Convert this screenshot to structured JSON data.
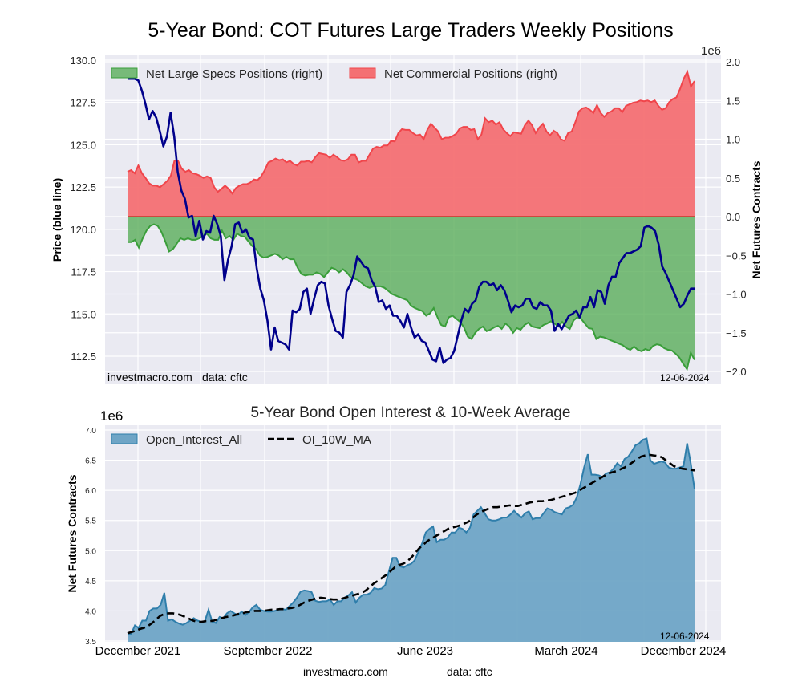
{
  "chart_data": [
    {
      "type": "area",
      "title": "5-Year Bond: COT Futures Large Traders Weekly Positions",
      "ylabel_left": "Price (blue line)",
      "ylabel_right": "Net Futures Contracts",
      "right_axis_multiplier": "1e6",
      "ylim_left": [
        110.9,
        130.3
      ],
      "ylim_right": [
        -2.07,
        2.07
      ],
      "left_ticks": [
        "130.0",
        "127.5",
        "125.0",
        "122.5",
        "120.0",
        "117.5",
        "115.0",
        "112.5"
      ],
      "right_ticks": [
        "2.0",
        "1.5",
        "1.0",
        "0.5",
        "0.0",
        "−0.5",
        "−1.0",
        "−1.5",
        "−2.0"
      ],
      "grid": true,
      "legend_placement": "top-left",
      "legend": [
        "Net Large Specs Positions (right)",
        "Net Commercial Positions (right)"
      ],
      "annotations": {
        "source": "investmacro.com",
        "data": "data: cftc",
        "date": "12-06-2024"
      },
      "x_range": [
        "2021-11",
        "2024-12-06"
      ],
      "series": [
        {
          "name": "Net Commercial Positions (right)",
          "color": "#f0454b",
          "unit": "1e6 contracts",
          "values": [
            0.58,
            0.6,
            0.56,
            0.66,
            0.56,
            0.5,
            0.43,
            0.4,
            0.4,
            0.38,
            0.42,
            0.46,
            0.53,
            0.72,
            0.72,
            0.62,
            0.58,
            0.6,
            0.56,
            0.55,
            0.53,
            0.5,
            0.52,
            0.5,
            0.38,
            0.32,
            0.36,
            0.4,
            0.36,
            0.3,
            0.37,
            0.4,
            0.42,
            0.42,
            0.44,
            0.48,
            0.47,
            0.52,
            0.6,
            0.7,
            0.72,
            0.75,
            0.73,
            0.74,
            0.7,
            0.72,
            0.68,
            0.66,
            0.71,
            0.71,
            0.72,
            0.7,
            0.77,
            0.82,
            0.81,
            0.8,
            0.76,
            0.8,
            0.77,
            0.73,
            0.72,
            0.74,
            0.8,
            0.8,
            0.7,
            0.72,
            0.72,
            0.8,
            0.88,
            0.9,
            0.89,
            0.92,
            0.92,
            0.98,
            0.97,
            1.08,
            1.13,
            1.12,
            1.12,
            1.08,
            1.05,
            1.06,
            1.0,
            1.12,
            1.2,
            1.15,
            1.1,
            1.0,
            1.02,
            1.02,
            1.04,
            1.07,
            1.14,
            1.16,
            1.16,
            1.12,
            1.13,
            1.0,
            1.06,
            1.27,
            1.22,
            1.24,
            1.19,
            1.22,
            1.13,
            1.08,
            1.04,
            1.09,
            1.08,
            1.07,
            1.18,
            1.24,
            1.18,
            1.08,
            1.15,
            1.2,
            1.1,
            1.05,
            1.11,
            1.08,
            1.0,
            0.98,
            1.08,
            1.1,
            1.22,
            1.36,
            1.4,
            1.41,
            1.38,
            1.34,
            1.44,
            1.34,
            1.29,
            1.34,
            1.36,
            1.4,
            1.4,
            1.35,
            1.43,
            1.45,
            1.47,
            1.48,
            1.5,
            1.49,
            1.5,
            1.48,
            1.5,
            1.43,
            1.38,
            1.4,
            1.48,
            1.52,
            1.54,
            1.65,
            1.78,
            1.87,
            1.68,
            1.75
          ]
        },
        {
          "name": "Net Large Specs Positions (right)",
          "color": "#3a9e3a",
          "unit": "1e6 contracts",
          "values": [
            -0.33,
            -0.33,
            -0.3,
            -0.4,
            -0.28,
            -0.18,
            -0.12,
            -0.1,
            -0.12,
            -0.2,
            -0.32,
            -0.45,
            -0.42,
            -0.35,
            -0.28,
            -0.3,
            -0.28,
            -0.3,
            -0.3,
            -0.28,
            -0.25,
            -0.22,
            -0.28,
            -0.3,
            -0.3,
            -0.18,
            -0.28,
            -0.25,
            -0.3,
            -0.22,
            -0.25,
            -0.26,
            -0.32,
            -0.38,
            -0.42,
            -0.5,
            -0.53,
            -0.52,
            -0.5,
            -0.48,
            -0.5,
            -0.55,
            -0.52,
            -0.55,
            -0.55,
            -0.66,
            -0.74,
            -0.76,
            -0.75,
            -0.75,
            -0.72,
            -0.74,
            -0.78,
            -0.72,
            -0.66,
            -0.68,
            -0.72,
            -0.68,
            -0.72,
            -0.78,
            -0.8,
            -0.82,
            -0.86,
            -0.9,
            -0.92,
            -0.9,
            -0.9,
            -0.9,
            -0.92,
            -0.96,
            -1.0,
            -1.02,
            -1.04,
            -1.06,
            -1.08,
            -1.15,
            -1.18,
            -1.2,
            -1.22,
            -1.28,
            -1.25,
            -1.18,
            -1.3,
            -1.4,
            -1.42,
            -1.3,
            -1.28,
            -1.32,
            -1.36,
            -1.43,
            -1.55,
            -1.58,
            -1.5,
            -1.45,
            -1.42,
            -1.48,
            -1.46,
            -1.43,
            -1.41,
            -1.45,
            -1.38,
            -1.42,
            -1.5,
            -1.44,
            -1.46,
            -1.4,
            -1.37,
            -1.42,
            -1.43,
            -1.44,
            -1.4,
            -1.38,
            -1.35,
            -1.38,
            -1.42,
            -1.36,
            -1.42,
            -1.45,
            -1.34,
            -1.3,
            -1.32,
            -1.38,
            -1.44,
            -1.45,
            -1.58,
            -1.55,
            -1.56,
            -1.58,
            -1.6,
            -1.62,
            -1.64,
            -1.66,
            -1.7,
            -1.72,
            -1.68,
            -1.72,
            -1.74,
            -1.71,
            -1.73,
            -1.67,
            -1.65,
            -1.66,
            -1.7,
            -1.72,
            -1.73,
            -1.77,
            -1.82,
            -1.9,
            -1.97,
            -1.76,
            -1.85
          ]
        },
        {
          "name": "Price (blue line)",
          "color": "#00008b",
          "unit": "price",
          "values": [
            128.9,
            128.9,
            128.9,
            128.8,
            128.2,
            127.4,
            126.5,
            127.0,
            126.6,
            125.8,
            124.9,
            125.5,
            126.9,
            125.5,
            123.4,
            122.3,
            121.8,
            120.7,
            120.8,
            119.6,
            120.5,
            119.4,
            119.9,
            119.8,
            120.8,
            120.3,
            119.6,
            117.0,
            118.2,
            119.0,
            120.3,
            120.4,
            119.8,
            120.0,
            119.5,
            119.4,
            117.7,
            116.5,
            115.8,
            114.6,
            112.9,
            114.2,
            113.4,
            113.3,
            113.2,
            112.9,
            115.2,
            115.1,
            115.3,
            116.3,
            116.5,
            115.0,
            115.9,
            116.7,
            116.9,
            116.8,
            115.5,
            114.7,
            114.0,
            113.9,
            113.6,
            116.3,
            116.7,
            117.3,
            118.4,
            118.1,
            117.8,
            117.7,
            117.0,
            116.6,
            115.7,
            115.8,
            115.3,
            115.5,
            114.9,
            114.9,
            114.6,
            114.2,
            115.0,
            114.2,
            113.6,
            113.8,
            113.4,
            113.3,
            112.8,
            112.3,
            112.2,
            113.0,
            112.1,
            112.3,
            112.4,
            112.8,
            113.7,
            114.6,
            115.3,
            115.1,
            115.6,
            115.8,
            116.6,
            116.9,
            116.9,
            116.7,
            116.8,
            116.4,
            116.7,
            116.4,
            115.8,
            115.1,
            115.5,
            115.4,
            115.5,
            115.9,
            115.9,
            115.4,
            115.3,
            115.7,
            115.5,
            115.5,
            115.2,
            114.0,
            114.4,
            114.1,
            114.5,
            114.9,
            115.0,
            115.2,
            114.8,
            115.4,
            115.4,
            116.0,
            115.4,
            116.4,
            116.3,
            115.6,
            116.7,
            117.2,
            117.2,
            118.0,
            118.3,
            118.6,
            118.6,
            118.7,
            118.8,
            119.0,
            120.1,
            120.2,
            120.1,
            119.9,
            119.1,
            117.8,
            117.4,
            116.9,
            116.4,
            115.9,
            115.4,
            115.6,
            116.1,
            116.5,
            116.5
          ]
        }
      ]
    },
    {
      "type": "area",
      "title": "5-Year Bond Open Interest & 10-Week Average",
      "ylabel": "Net Futures Contracts",
      "y_multiplier": "1e6",
      "ylim": [
        3.5,
        7.07
      ],
      "y_ticks": [
        "7.0",
        "6.5",
        "6.0",
        "5.5",
        "5.0",
        "4.5",
        "4.0",
        "3.5"
      ],
      "x_ticks": [
        "December 2021",
        "September 2022",
        "June 2023",
        "March 2024",
        "December 2024"
      ],
      "grid": true,
      "legend_placement": "top-left",
      "legend": [
        "Open_Interest_All",
        "OI_10W_MA"
      ],
      "annotations": {
        "source": "investmacro.com",
        "data": "data: cftc",
        "date": "12-06-2024"
      },
      "series": [
        {
          "name": "Open_Interest_All",
          "color": "#2f7eab",
          "unit": "1e6 contracts",
          "values": [
            3.62,
            3.62,
            3.76,
            3.72,
            3.84,
            3.84,
            4.0,
            4.04,
            4.04,
            4.1,
            4.3,
            3.84,
            3.86,
            3.82,
            3.79,
            3.77,
            3.8,
            3.84,
            3.88,
            3.84,
            3.82,
            3.83,
            4.02,
            3.82,
            3.8,
            3.9,
            3.88,
            3.96,
            4.0,
            3.96,
            3.93,
            3.99,
            3.93,
            3.98,
            4.06,
            4.1,
            4.02,
            4.0,
            3.99,
            3.99,
            4.0,
            4.02,
            4.03,
            4.02,
            4.08,
            4.14,
            4.22,
            4.32,
            4.34,
            4.33,
            4.31,
            4.17,
            4.15,
            4.16,
            4.16,
            4.19,
            4.1,
            4.16,
            4.16,
            4.22,
            4.26,
            4.31,
            4.14,
            4.22,
            4.27,
            4.27,
            4.3,
            4.38,
            4.36,
            4.37,
            4.43,
            4.66,
            4.88,
            4.88,
            4.74,
            4.72,
            4.76,
            4.78,
            4.84,
            4.98,
            5.12,
            5.3,
            5.36,
            5.4,
            5.14,
            5.18,
            5.18,
            5.22,
            5.3,
            5.3,
            5.38,
            5.36,
            5.3,
            5.38,
            5.6,
            5.66,
            5.72,
            5.62,
            5.52,
            5.5,
            5.5,
            5.52,
            5.55,
            5.55,
            5.6,
            5.66,
            5.6,
            5.55,
            5.62,
            5.65,
            5.52,
            5.54,
            5.54,
            5.62,
            5.7,
            5.68,
            5.64,
            5.62,
            5.6,
            5.7,
            5.72,
            5.76,
            5.88,
            6.1,
            6.38,
            6.6,
            6.26,
            6.26,
            6.25,
            6.22,
            6.28,
            6.3,
            6.36,
            6.45,
            6.4,
            6.52,
            6.56,
            6.65,
            6.75,
            6.78,
            6.84,
            6.86,
            6.5,
            6.44,
            6.46,
            6.48,
            6.46,
            6.38,
            6.36,
            6.36,
            6.38,
            6.4,
            6.78,
            6.44,
            6.02
          ]
        },
        {
          "name": "OI_10W_MA",
          "color": "#000000",
          "unit": "1e6 contracts",
          "values": [
            3.63,
            3.65,
            3.67,
            3.7,
            3.72,
            3.75,
            3.8,
            3.86,
            3.92,
            3.95,
            3.96,
            3.96,
            3.95,
            3.93,
            3.9,
            3.87,
            3.84,
            3.82,
            3.82,
            3.83,
            3.83,
            3.84,
            3.86,
            3.88,
            3.9,
            3.91,
            3.93,
            3.95,
            3.96,
            3.98,
            3.99,
            4.0,
            4.0,
            4.0,
            4.01,
            4.02,
            4.02,
            4.03,
            4.03,
            4.04,
            4.05,
            4.07,
            4.1,
            4.14,
            4.17,
            4.19,
            4.21,
            4.22,
            4.21,
            4.2,
            4.19,
            4.19,
            4.2,
            4.22,
            4.24,
            4.26,
            4.28,
            4.3,
            4.34,
            4.4,
            4.46,
            4.5,
            4.55,
            4.6,
            4.66,
            4.72,
            4.76,
            4.78,
            4.82,
            4.88,
            4.96,
            5.04,
            5.1,
            5.16,
            5.2,
            5.24,
            5.28,
            5.32,
            5.36,
            5.38,
            5.4,
            5.42,
            5.45,
            5.48,
            5.54,
            5.6,
            5.64,
            5.67,
            5.7,
            5.72,
            5.72,
            5.73,
            5.74,
            5.75,
            5.74,
            5.74,
            5.76,
            5.78,
            5.8,
            5.81,
            5.82,
            5.82,
            5.83,
            5.84,
            5.86,
            5.88,
            5.9,
            5.92,
            5.94,
            5.96,
            6.0,
            6.04,
            6.08,
            6.12,
            6.16,
            6.2,
            6.24,
            6.28,
            6.3,
            6.32,
            6.35,
            6.38,
            6.42,
            6.47,
            6.52,
            6.56,
            6.58,
            6.59,
            6.58,
            6.57,
            6.55,
            6.5,
            6.45,
            6.4,
            6.38,
            6.36,
            6.35,
            6.34,
            6.33
          ]
        }
      ]
    }
  ],
  "page": {
    "top_title": "5-Year Bond: COT Futures Large Traders Weekly Positions",
    "bottom_title": "5-Year Bond Open Interest & 10-Week Average",
    "top_ylabel_left": "Price (blue line)",
    "top_ylabel_right": "Net Futures Contracts",
    "top_multiplier": "1e6",
    "bottom_ylabel": "Net Futures Contracts",
    "bottom_multiplier": "1e6",
    "legend_top_specs": "Net Large Specs Positions (right)",
    "legend_top_comm": "Net Commercial Positions (right)",
    "legend_bottom_oi": "Open_Interest_All",
    "legend_bottom_ma": "OI_10W_MA",
    "top_source": "investmacro.com",
    "top_data": "data: cftc",
    "top_date": "12-06-2024",
    "bottom_date": "12-06-2024",
    "footer_source": "investmacro.com",
    "footer_data": "data: cftc"
  }
}
